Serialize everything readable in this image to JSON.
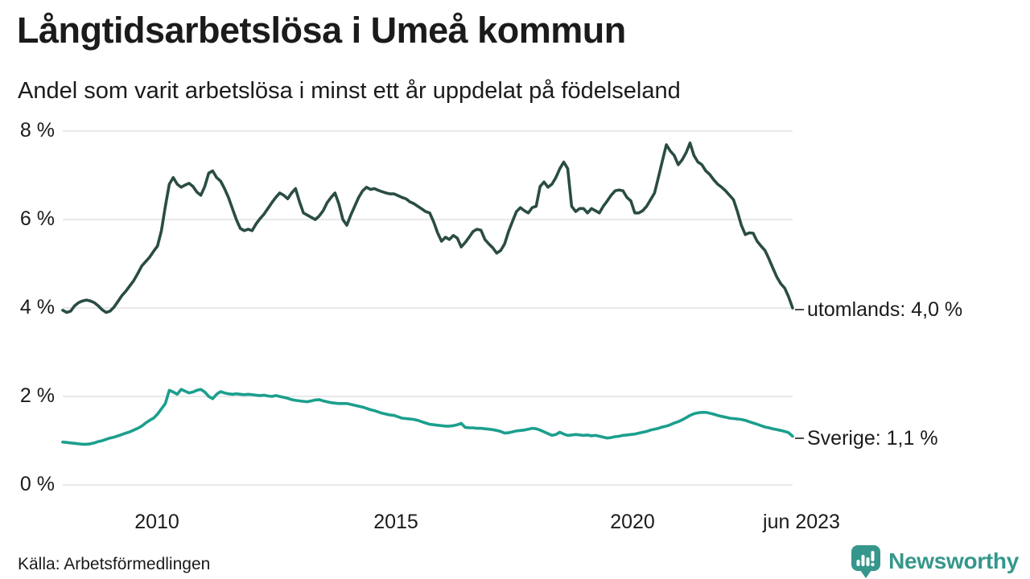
{
  "header": {
    "title": "Långtidsarbetslösa i Umeå kommun",
    "subtitle": "Andel som varit arbetslösa i minst ett år uppdelat på födelseland"
  },
  "footer": {
    "source": "Källa: Arbetsförmedlingen",
    "brand": "Newsworthy"
  },
  "colors": {
    "utomlands_line": "#2a4c44",
    "sverige_line": "#1b9f8e",
    "gridline": "#e8e8eb",
    "text": "#1b1b1b",
    "brand_teal": "#35978b"
  },
  "chart_data": {
    "type": "line",
    "title": "Långtidsarbetslösa i Umeå kommun",
    "subtitle": "Andel som varit arbetslösa i minst ett år uppdelat på födelseland",
    "x_unit": "month",
    "x_start": "2008-01",
    "x_end": "2023-06",
    "ylim": [
      0,
      8
    ],
    "grid": true,
    "legend_position": "end-of-line-labels",
    "yticks": [
      {
        "value": 8,
        "label": "8 %"
      },
      {
        "value": 6,
        "label": "6 %"
      },
      {
        "value": 4,
        "label": "4 %"
      },
      {
        "value": 2,
        "label": "2 %"
      },
      {
        "value": 0,
        "label": "0 %"
      }
    ],
    "xticks": [
      {
        "t": 2010.0,
        "label": "2010"
      },
      {
        "t": 2015.0,
        "label": "2015"
      },
      {
        "t": 2020.0,
        "label": "2020"
      },
      {
        "t": 2023.42,
        "label": "jun 2023"
      }
    ],
    "series": [
      {
        "name": "utomlands",
        "color": "#2a4c44",
        "end_label": "utomlands: 4,0 %",
        "end_value": "4,0 %",
        "values": [
          3.95,
          3.9,
          3.93,
          4.05,
          4.12,
          4.16,
          4.18,
          4.16,
          4.12,
          4.05,
          3.96,
          3.9,
          3.93,
          4.02,
          4.15,
          4.28,
          4.38,
          4.5,
          4.62,
          4.78,
          4.95,
          5.05,
          5.15,
          5.28,
          5.4,
          5.75,
          6.3,
          6.8,
          6.95,
          6.8,
          6.73,
          6.78,
          6.82,
          6.75,
          6.62,
          6.55,
          6.75,
          7.05,
          7.1,
          6.95,
          6.87,
          6.7,
          6.5,
          6.25,
          6.0,
          5.8,
          5.75,
          5.78,
          5.75,
          5.9,
          6.02,
          6.12,
          6.25,
          6.38,
          6.5,
          6.6,
          6.55,
          6.47,
          6.6,
          6.7,
          6.4,
          6.15,
          6.1,
          6.05,
          6.0,
          6.08,
          6.2,
          6.38,
          6.5,
          6.6,
          6.35,
          6.0,
          5.87,
          6.1,
          6.3,
          6.5,
          6.65,
          6.73,
          6.68,
          6.7,
          6.66,
          6.63,
          6.6,
          6.58,
          6.58,
          6.54,
          6.5,
          6.47,
          6.4,
          6.36,
          6.3,
          6.24,
          6.18,
          6.15,
          5.95,
          5.7,
          5.51,
          5.6,
          5.55,
          5.64,
          5.58,
          5.38,
          5.48,
          5.6,
          5.73,
          5.78,
          5.76,
          5.55,
          5.45,
          5.36,
          5.24,
          5.3,
          5.45,
          5.73,
          5.96,
          6.18,
          6.27,
          6.2,
          6.15,
          6.27,
          6.3,
          6.75,
          6.85,
          6.73,
          6.8,
          6.95,
          7.15,
          7.3,
          7.15,
          6.3,
          6.18,
          6.25,
          6.25,
          6.15,
          6.25,
          6.2,
          6.15,
          6.3,
          6.42,
          6.55,
          6.65,
          6.67,
          6.65,
          6.5,
          6.42,
          6.15,
          6.15,
          6.2,
          6.3,
          6.45,
          6.6,
          6.96,
          7.33,
          7.69,
          7.55,
          7.45,
          7.24,
          7.35,
          7.51,
          7.73,
          7.45,
          7.3,
          7.24,
          7.1,
          7.02,
          6.9,
          6.8,
          6.73,
          6.65,
          6.55,
          6.45,
          6.18,
          5.87,
          5.66,
          5.7,
          5.69,
          5.51,
          5.4,
          5.3,
          5.11,
          4.9,
          4.7,
          4.55,
          4.45,
          4.25,
          4.0
        ]
      },
      {
        "name": "Sverige",
        "color": "#1b9f8e",
        "end_label": "Sverige: 1,1 %",
        "end_value": "1,1 %",
        "values": [
          0.97,
          0.96,
          0.95,
          0.94,
          0.93,
          0.92,
          0.92,
          0.93,
          0.95,
          0.98,
          1.0,
          1.03,
          1.06,
          1.08,
          1.11,
          1.14,
          1.17,
          1.2,
          1.24,
          1.28,
          1.33,
          1.4,
          1.46,
          1.51,
          1.6,
          1.72,
          1.84,
          2.14,
          2.1,
          2.05,
          2.16,
          2.12,
          2.08,
          2.1,
          2.14,
          2.16,
          2.1,
          2.0,
          1.95,
          2.05,
          2.11,
          2.08,
          2.06,
          2.05,
          2.06,
          2.05,
          2.04,
          2.05,
          2.04,
          2.03,
          2.02,
          2.03,
          2.01,
          2.0,
          2.02,
          2.0,
          1.98,
          1.96,
          1.93,
          1.91,
          1.9,
          1.89,
          1.88,
          1.9,
          1.92,
          1.93,
          1.9,
          1.88,
          1.86,
          1.85,
          1.84,
          1.84,
          1.84,
          1.82,
          1.8,
          1.78,
          1.76,
          1.73,
          1.7,
          1.68,
          1.65,
          1.62,
          1.6,
          1.58,
          1.57,
          1.54,
          1.51,
          1.5,
          1.49,
          1.48,
          1.46,
          1.43,
          1.4,
          1.37,
          1.36,
          1.35,
          1.34,
          1.33,
          1.33,
          1.34,
          1.36,
          1.39,
          1.3,
          1.29,
          1.29,
          1.28,
          1.28,
          1.27,
          1.26,
          1.25,
          1.23,
          1.21,
          1.17,
          1.18,
          1.2,
          1.22,
          1.23,
          1.24,
          1.26,
          1.28,
          1.27,
          1.24,
          1.2,
          1.16,
          1.12,
          1.14,
          1.19,
          1.15,
          1.12,
          1.13,
          1.14,
          1.13,
          1.12,
          1.13,
          1.11,
          1.12,
          1.1,
          1.08,
          1.06,
          1.07,
          1.09,
          1.1,
          1.12,
          1.13,
          1.14,
          1.15,
          1.17,
          1.19,
          1.21,
          1.24,
          1.26,
          1.28,
          1.31,
          1.33,
          1.36,
          1.4,
          1.43,
          1.47,
          1.52,
          1.57,
          1.61,
          1.63,
          1.64,
          1.64,
          1.62,
          1.6,
          1.57,
          1.55,
          1.53,
          1.51,
          1.5,
          1.49,
          1.48,
          1.46,
          1.43,
          1.4,
          1.37,
          1.34,
          1.31,
          1.29,
          1.27,
          1.25,
          1.23,
          1.21,
          1.18,
          1.1
        ]
      }
    ]
  }
}
